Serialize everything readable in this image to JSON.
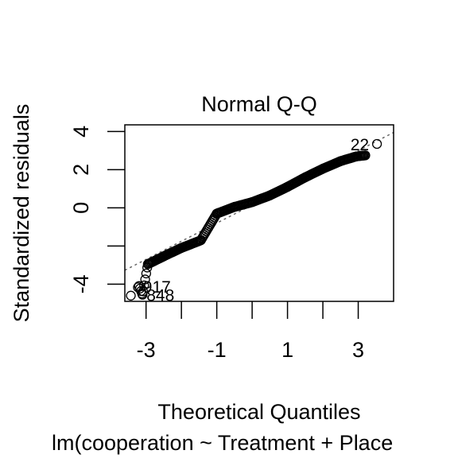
{
  "chart_data": {
    "type": "scatter",
    "title": "Normal Q-Q",
    "xlabel": "Theoretical Quantiles",
    "ylabel": "Standardized residuals",
    "subtitle": "lm(cooperation ~ Treatment + Place",
    "xlim": [
      -3.6,
      4.0
    ],
    "ylim": [
      -4.9,
      4.35
    ],
    "x_ticks": [
      -3,
      -2,
      -1,
      0,
      1,
      2,
      3
    ],
    "x_tick_labels": [
      "-3",
      "",
      "-1",
      "",
      "1",
      "",
      "3"
    ],
    "y_ticks": [
      -4,
      -2,
      0,
      2,
      4
    ],
    "y_tick_labels": [
      "-4",
      "",
      "0",
      "2",
      "4"
    ],
    "grid": false,
    "reference_line": {
      "slope": 0.95,
      "intercept": 0.15,
      "style": "dotted",
      "color": "#666666"
    },
    "points": {
      "n": 220,
      "marker": "open-circle",
      "color": "#000000",
      "description_points": [
        [
          -3.43,
          -4.6
        ],
        [
          -3.2,
          -4.1
        ],
        [
          -3.1,
          -4.55
        ],
        [
          -2.95,
          -2.95
        ],
        [
          -2.4,
          -2.45
        ],
        [
          -2.0,
          -2.1
        ],
        [
          -1.45,
          -1.7
        ],
        [
          -1.0,
          -0.3
        ],
        [
          -0.5,
          0.05
        ],
        [
          0.0,
          0.3
        ],
        [
          0.5,
          0.65
        ],
        [
          1.0,
          1.1
        ],
        [
          1.5,
          1.6
        ],
        [
          2.0,
          2.05
        ],
        [
          2.5,
          2.45
        ],
        [
          2.95,
          2.7
        ],
        [
          3.2,
          2.75
        ],
        [
          3.53,
          3.35
        ]
      ]
    },
    "labeled_points": [
      {
        "label": "22",
        "x": 3.53,
        "y": 3.35
      },
      {
        "label": "917",
        "x": -3.2,
        "y": -4.1
      },
      {
        "label": "848",
        "x": -3.1,
        "y": -4.55
      }
    ]
  }
}
